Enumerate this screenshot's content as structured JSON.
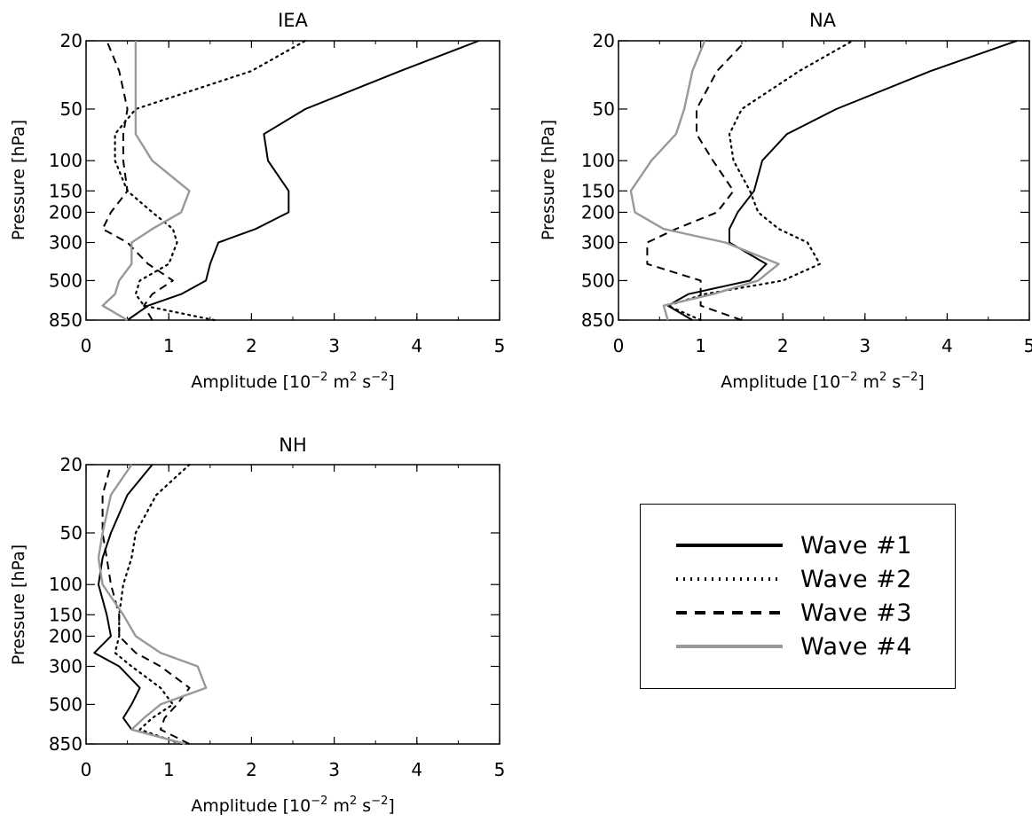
{
  "chart_data": [
    {
      "type": "line",
      "title": "IEA",
      "xlabel": "Amplitude",
      "xlabel_units": "[10^-2 m^2 s^-2]",
      "ylabel": "Pressure [hPa]",
      "xlim": [
        0,
        5
      ],
      "ylim": [
        850,
        20
      ],
      "y_scale": "log",
      "x_ticks": [
        "0",
        "1",
        "2",
        "3",
        "4",
        "5"
      ],
      "y_ticks": [
        "20",
        "50",
        "100",
        "150",
        "200",
        "300",
        "500",
        "850"
      ],
      "pressure_levels": [
        850,
        700,
        600,
        500,
        400,
        300,
        250,
        200,
        150,
        100,
        70,
        50,
        30,
        20
      ],
      "series": [
        {
          "name": "Wave #1",
          "values": [
            0.5,
            0.75,
            1.15,
            1.45,
            1.5,
            1.6,
            2.05,
            2.45,
            2.45,
            2.2,
            2.15,
            2.65,
            3.8,
            4.75
          ]
        },
        {
          "name": "Wave #2",
          "values": [
            1.55,
            0.7,
            0.6,
            0.65,
            1.0,
            1.1,
            1.05,
            0.8,
            0.5,
            0.35,
            0.35,
            0.6,
            2.0,
            2.65
          ]
        },
        {
          "name": "Wave #3",
          "values": [
            0.8,
            0.7,
            0.8,
            1.05,
            0.75,
            0.5,
            0.2,
            0.3,
            0.5,
            0.45,
            0.45,
            0.5,
            0.4,
            0.25
          ]
        },
        {
          "name": "Wave #4",
          "values": [
            0.5,
            0.2,
            0.35,
            0.4,
            0.55,
            0.55,
            0.8,
            1.15,
            1.25,
            0.8,
            0.6,
            0.6,
            0.6,
            0.6
          ]
        }
      ]
    },
    {
      "type": "line",
      "title": "NA",
      "xlabel": "Amplitude",
      "xlabel_units": "[10^-2 m^2 s^-2]",
      "ylabel": "Pressure [hPa]",
      "xlim": [
        0,
        5
      ],
      "ylim": [
        850,
        20
      ],
      "y_scale": "log",
      "x_ticks": [
        "0",
        "1",
        "2",
        "3",
        "4",
        "5"
      ],
      "y_ticks": [
        "20",
        "50",
        "100",
        "150",
        "200",
        "300",
        "500",
        "850"
      ],
      "pressure_levels": [
        850,
        700,
        600,
        500,
        400,
        300,
        250,
        200,
        150,
        100,
        70,
        50,
        30,
        20
      ],
      "series": [
        {
          "name": "Wave #1",
          "values": [
            0.9,
            0.6,
            0.85,
            1.6,
            1.8,
            1.35,
            1.35,
            1.45,
            1.65,
            1.75,
            2.05,
            2.65,
            3.8,
            4.85
          ]
        },
        {
          "name": "Wave #2",
          "values": [
            1.0,
            0.6,
            1.05,
            2.0,
            2.45,
            2.3,
            1.95,
            1.7,
            1.6,
            1.4,
            1.35,
            1.5,
            2.2,
            2.85
          ]
        },
        {
          "name": "Wave #3",
          "values": [
            1.5,
            1.0,
            1.0,
            1.0,
            0.35,
            0.35,
            0.7,
            1.2,
            1.4,
            1.15,
            0.95,
            0.95,
            1.2,
            1.55
          ]
        },
        {
          "name": "Wave #4",
          "values": [
            0.6,
            0.55,
            1.15,
            1.7,
            1.95,
            1.3,
            0.55,
            0.2,
            0.15,
            0.4,
            0.7,
            0.8,
            0.9,
            1.05
          ]
        }
      ]
    },
    {
      "type": "line",
      "title": "NH",
      "xlabel": "Amplitude",
      "xlabel_units": "[10^-2 m^2 s^-2]",
      "ylabel": "Pressure [hPa]",
      "xlim": [
        0,
        5
      ],
      "ylim": [
        850,
        20
      ],
      "y_scale": "log",
      "x_ticks": [
        "0",
        "1",
        "2",
        "3",
        "4",
        "5"
      ],
      "y_ticks": [
        "20",
        "50",
        "100",
        "150",
        "200",
        "300",
        "500",
        "850"
      ],
      "pressure_levels": [
        850,
        700,
        600,
        500,
        400,
        300,
        250,
        200,
        150,
        100,
        70,
        50,
        30,
        20
      ],
      "series": [
        {
          "name": "Wave #1",
          "values": [
            1.2,
            0.55,
            0.45,
            0.55,
            0.65,
            0.4,
            0.1,
            0.3,
            0.25,
            0.15,
            0.2,
            0.3,
            0.5,
            0.8
          ]
        },
        {
          "name": "Wave #2",
          "values": [
            1.15,
            0.65,
            0.8,
            1.05,
            0.9,
            0.55,
            0.35,
            0.4,
            0.4,
            0.45,
            0.55,
            0.6,
            0.85,
            1.25
          ]
        },
        {
          "name": "Wave #3",
          "values": [
            1.25,
            0.9,
            0.95,
            1.1,
            1.25,
            0.9,
            0.6,
            0.4,
            0.4,
            0.3,
            0.25,
            0.2,
            0.2,
            0.3
          ]
        },
        {
          "name": "Wave #4",
          "values": [
            1.2,
            0.55,
            0.7,
            0.9,
            1.45,
            1.35,
            0.9,
            0.6,
            0.45,
            0.2,
            0.15,
            0.2,
            0.3,
            0.55
          ]
        }
      ]
    }
  ],
  "style": {
    "colors": {
      "wave1": "#000000",
      "wave2": "#000000",
      "wave3": "#000000",
      "wave4": "#999999"
    },
    "dash": {
      "wave1": "none",
      "wave2": "2,5",
      "wave3": "9,6",
      "wave4": "none"
    }
  },
  "legend": {
    "placement": "bottom-right",
    "items": [
      {
        "label": "Wave  #1",
        "series": "wave1"
      },
      {
        "label": "Wave  #2",
        "series": "wave2"
      },
      {
        "label": "Wave  #3",
        "series": "wave3"
      },
      {
        "label": "Wave  #4",
        "series": "wave4"
      }
    ]
  },
  "labels": {
    "ylabel": "Pressure [hPa]",
    "xlabel_main": "Amplitude",
    "xunit_base": "10",
    "xunit_exp1": "−2",
    "xunit_m": "m",
    "xunit_exp2": "2",
    "xunit_s": "s",
    "xunit_exp3": "−2"
  }
}
